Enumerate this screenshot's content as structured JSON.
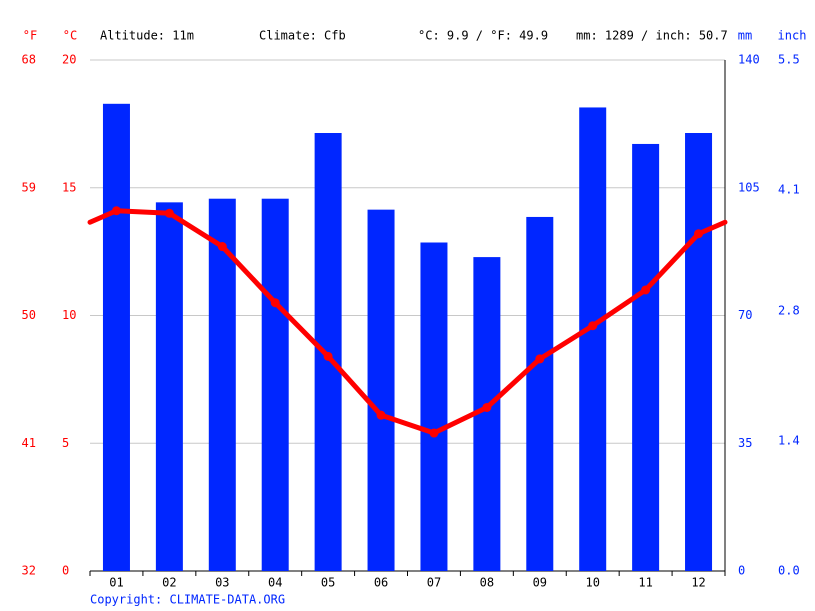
{
  "chart_data": {
    "type": "bar",
    "header": [
      "Altitude: 11m",
      "Climate: Cfb",
      "°C: 9.9 / °F: 49.9",
      "mm: 1289 / inch: 50.7"
    ],
    "copyright": "Copyright: CLIMATE-DATA.ORG",
    "categories": [
      "01",
      "02",
      "03",
      "04",
      "05",
      "06",
      "07",
      "08",
      "09",
      "10",
      "11",
      "12"
    ],
    "series": [
      {
        "type": "bar",
        "axis": "y2",
        "color": "#0026ff",
        "values": [
          128,
          101,
          102,
          102,
          120,
          99,
          90,
          86,
          97,
          127,
          117,
          120
        ]
      },
      {
        "type": "line",
        "axis": "y",
        "color": "#ff0000",
        "values": [
          14.1,
          14.0,
          12.7,
          10.5,
          8.4,
          6.1,
          5.4,
          6.4,
          8.3,
          9.6,
          11.0,
          13.2
        ]
      }
    ],
    "ylabel": "°C",
    "ylim": [
      0,
      20
    ],
    "yticks": [
      0,
      5,
      10,
      15,
      20
    ],
    "yflabel": "°F",
    "yflim": [
      32,
      68
    ],
    "yfticks": [
      32,
      41,
      50,
      59,
      68
    ],
    "y2label": "mm",
    "y2lim": [
      0,
      140
    ],
    "y2ticks": [
      0,
      35,
      70,
      105,
      140
    ],
    "y3label": "inch",
    "y3lim": [
      0,
      5.5
    ],
    "y3ticks": [
      {
        "value": 0,
        "label": "0.0"
      },
      1.4,
      2.8,
      4.1,
      5.5
    ],
    "grid": true
  }
}
